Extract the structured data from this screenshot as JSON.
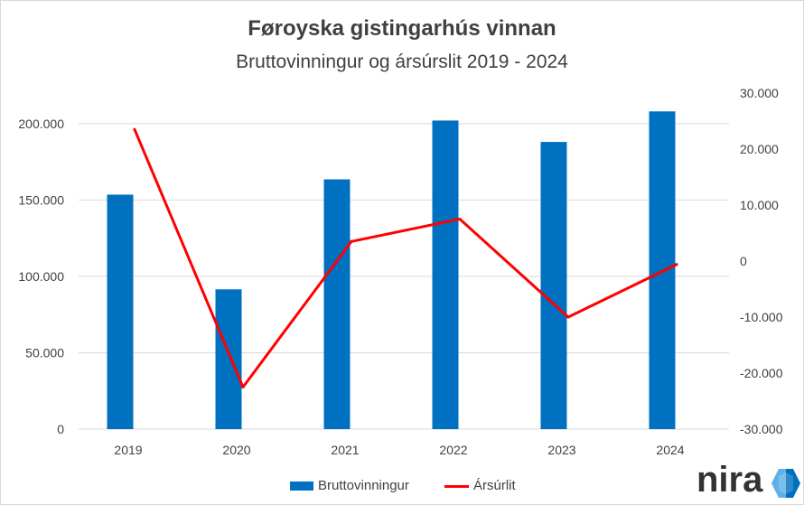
{
  "chart_data": {
    "type": "bar",
    "title": "Føroyska gistingarhús vinnan",
    "subtitle": "Bruttovinningur og ársúrslit 2019 - 2024",
    "categories": [
      "2019",
      "2020",
      "2021",
      "2022",
      "2023",
      "2024"
    ],
    "series": [
      {
        "name": "Bruttovinningur",
        "type": "bar",
        "axis": "left",
        "color": "#0070c0",
        "values": [
          153500,
          91500,
          163500,
          202000,
          188000,
          208000
        ]
      },
      {
        "name": "Ársúrlit",
        "type": "line",
        "axis": "right",
        "color": "#ff0000",
        "values": [
          23500,
          -22500,
          3500,
          7500,
          -10000,
          -600
        ]
      }
    ],
    "y_left": {
      "ylim": [
        0,
        220000
      ],
      "ticks": [
        0,
        50000,
        100000,
        150000,
        200000
      ],
      "tick_labels": [
        "0",
        "50.000",
        "100.000",
        "150.000",
        "200.000"
      ]
    },
    "y_right": {
      "ylim": [
        -30000,
        30000
      ],
      "ticks": [
        -30000,
        -20000,
        -10000,
        0,
        10000,
        20000,
        30000
      ],
      "tick_labels": [
        "-30.000",
        "-20.000",
        "-10.000",
        "0",
        "10.000",
        "20.000",
        "30.000"
      ]
    },
    "grid": true,
    "grid_color": "#d9d9d9",
    "legend": "bottom"
  },
  "logo": {
    "text": "nira",
    "icon": "nira-hexagon-icon",
    "color": "#0070c0",
    "accent": "#5fb0e8"
  }
}
